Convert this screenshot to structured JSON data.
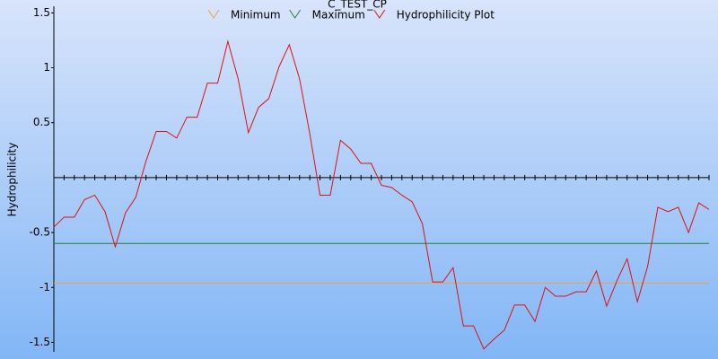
{
  "chart_data": {
    "type": "line",
    "title": "C_TEST_CP",
    "y_label": "Hydrophilicity",
    "ylim": [
      -1.57,
      1.56
    ],
    "yticks": [
      1.5,
      1,
      0.5,
      -0.5,
      -1,
      -1.5
    ],
    "series": [
      {
        "name": "Minimum",
        "color": "#f0a040",
        "value": -0.96
      },
      {
        "name": "Maximum",
        "color": "#208040",
        "value": -0.6
      },
      {
        "name": "Hydrophilicity Plot",
        "color": "#e01010",
        "values": [
          -0.45,
          -0.36,
          -0.36,
          -0.2,
          -0.16,
          -0.31,
          -0.63,
          -0.32,
          -0.18,
          0.15,
          0.42,
          0.42,
          0.36,
          0.55,
          0.55,
          0.86,
          0.86,
          1.24,
          0.9,
          0.41,
          0.64,
          0.72,
          1.01,
          1.21,
          0.9,
          0.4,
          -0.16,
          -0.16,
          0.34,
          0.26,
          0.13,
          0.13,
          -0.07,
          -0.09,
          -0.16,
          -0.22,
          -0.42,
          -0.95,
          -0.95,
          -0.82,
          -1.35,
          -1.35,
          -1.56,
          -1.47,
          -1.39,
          -1.16,
          -1.16,
          -1.31,
          -1.0,
          -1.08,
          -1.08,
          -1.04,
          -1.04,
          -0.85,
          -1.17,
          -0.94,
          -0.74,
          -1.13,
          -0.81,
          -0.27,
          -0.31,
          -0.27,
          -0.5,
          -0.23,
          -0.29
        ]
      }
    ]
  }
}
